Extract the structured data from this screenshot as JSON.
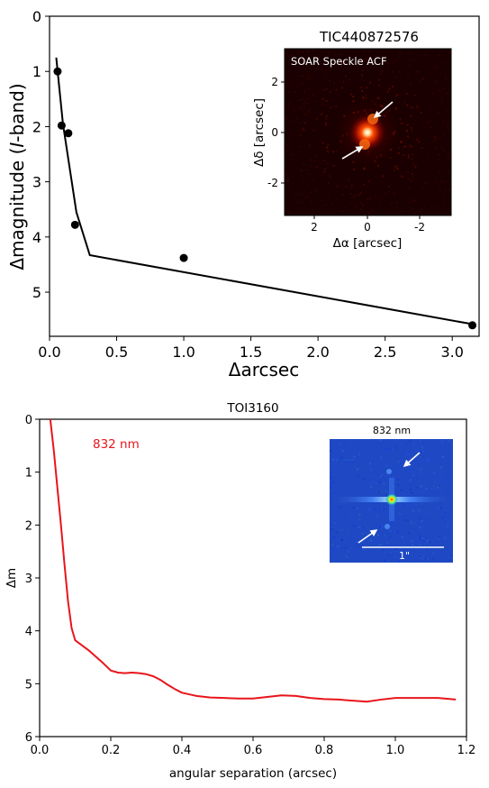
{
  "chart_data": [
    {
      "type": "scatter",
      "title": "",
      "xlabel": "Δarcsec",
      "ylabel_pre": "Δmagnitude (",
      "ylabel_em": "I",
      "ylabel_post": "-band)",
      "xlim": [
        0.0,
        3.2
      ],
      "ylim": [
        0,
        5.8
      ],
      "y_inverted": true,
      "x_ticks": [
        0.0,
        0.5,
        1.0,
        1.5,
        2.0,
        2.5,
        3.0
      ],
      "x_tick_labels": [
        "0.0",
        "0.5",
        "1.0",
        "1.5",
        "2.0",
        "2.5",
        "3.0"
      ],
      "y_ticks": [
        0,
        1,
        2,
        3,
        4,
        5
      ],
      "y_tick_labels": [
        "0",
        "1",
        "2",
        "3",
        "4",
        "5"
      ],
      "grid": false,
      "series": [
        {
          "kind": "points",
          "x": [
            0.06,
            0.09,
            0.14,
            0.19,
            1.0,
            3.15
          ],
          "y": [
            1.0,
            1.98,
            2.12,
            3.78,
            4.38,
            5.6
          ]
        },
        {
          "kind": "line",
          "x": [
            0.05,
            0.1,
            0.2,
            0.3,
            3.15
          ],
          "y": [
            0.75,
            1.95,
            3.55,
            4.33,
            5.58
          ]
        }
      ],
      "inset": {
        "title": "TIC440872576",
        "label": "SOAR Speckle ACF",
        "xlabel": "Δα [arcsec]",
        "ylabel": "Δδ [arcsec]",
        "x_tick_labels": [
          "2",
          "0",
          "-2"
        ],
        "y_tick_labels": [
          "2",
          "0",
          "-2"
        ],
        "colors": {
          "background": "#1a0000",
          "core": "#ffffff",
          "glow": "#ff3b00"
        }
      }
    },
    {
      "type": "line",
      "title": "TOI3160",
      "xlabel": "angular separation (arcsec)",
      "ylabel": "Δm",
      "xlim": [
        0.0,
        1.2
      ],
      "ylim": [
        0,
        6
      ],
      "y_inverted": true,
      "x_ticks": [
        0.0,
        0.2,
        0.4,
        0.6,
        0.8,
        1.0,
        1.2
      ],
      "x_tick_labels": [
        "0.0",
        "0.2",
        "0.4",
        "0.6",
        "0.8",
        "1.0",
        "1.2"
      ],
      "y_ticks": [
        0,
        1,
        2,
        3,
        4,
        5,
        6
      ],
      "y_tick_labels": [
        "0",
        "1",
        "2",
        "3",
        "4",
        "5",
        "6"
      ],
      "grid": false,
      "annotation": "832 nm",
      "series": [
        {
          "color": "#e8151b",
          "x": [
            0.03,
            0.04,
            0.05,
            0.06,
            0.07,
            0.08,
            0.09,
            0.1,
            0.12,
            0.14,
            0.16,
            0.18,
            0.2,
            0.22,
            0.24,
            0.26,
            0.28,
            0.3,
            0.32,
            0.34,
            0.36,
            0.38,
            0.4,
            0.44,
            0.48,
            0.52,
            0.56,
            0.6,
            0.64,
            0.68,
            0.72,
            0.76,
            0.8,
            0.84,
            0.88,
            0.92,
            0.96,
            1.0,
            1.04,
            1.08,
            1.12,
            1.17
          ],
          "y": [
            0.0,
            0.6,
            1.3,
            2.0,
            2.75,
            3.45,
            3.95,
            4.18,
            4.28,
            4.38,
            4.5,
            4.62,
            4.75,
            4.79,
            4.8,
            4.79,
            4.8,
            4.82,
            4.86,
            4.93,
            5.02,
            5.1,
            5.17,
            5.23,
            5.26,
            5.27,
            5.28,
            5.28,
            5.25,
            5.22,
            5.23,
            5.27,
            5.29,
            5.3,
            5.32,
            5.34,
            5.3,
            5.27,
            5.27,
            5.27,
            5.27,
            5.3
          ]
        }
      ],
      "inset": {
        "title": "832 nm",
        "scale_label": "1\"",
        "colors": {
          "background": "#1f49c4",
          "core": "#ffef00",
          "streak": "#6fb9ff"
        }
      }
    }
  ]
}
